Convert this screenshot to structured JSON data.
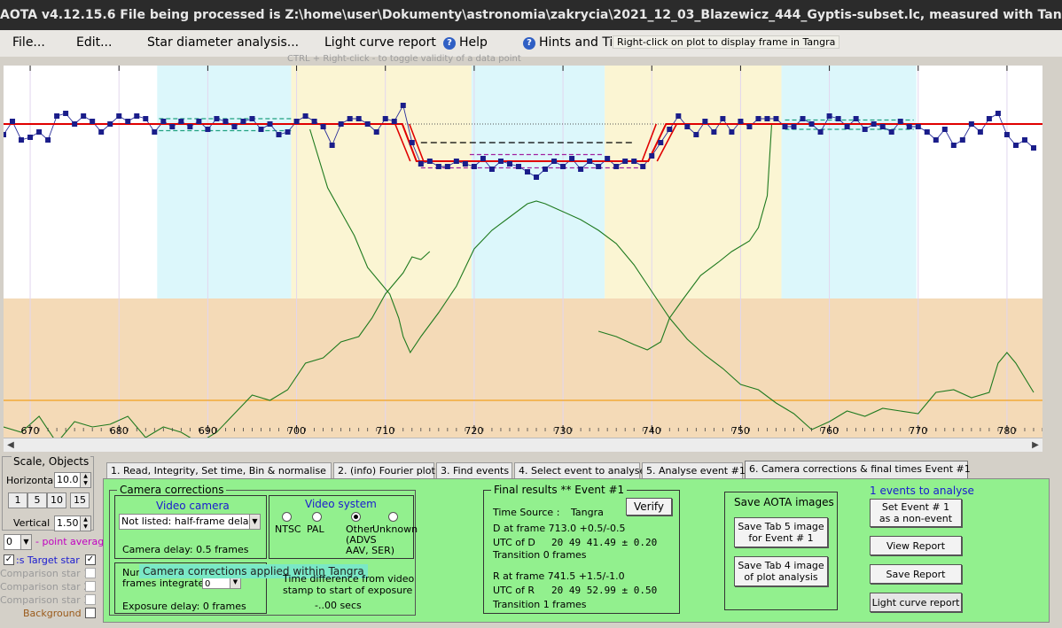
{
  "window": {
    "title": "AOTA v4.12.15.6    File being processed is Z:\\home\\user\\Dokumenty\\astronomia\\zakrycia\\2021_12_03_Blazewicz_444_Gyptis-subset.lc, measured with Tangra"
  },
  "menu": {
    "file": "File...",
    "edit": "Edit...",
    "star_diameter": "Star diameter analysis...",
    "light_curve": "Light curve report",
    "help": "Help",
    "hints": "Hints and Tips"
  },
  "tooltip": "Right-click on plot to display frame in Tangra",
  "hint_line": "CTRL + Right-click   -   to toggle validity of a data point",
  "chart_data": {
    "type": "line",
    "title": "",
    "xlabel": "",
    "ylabel": "",
    "xlim": [
      667,
      784
    ],
    "x_ticks": [
      "670",
      "680",
      "690",
      "700",
      "710",
      "720",
      "730",
      "740",
      "750",
      "760",
      "770",
      "780"
    ],
    "x_tick_values": [
      670,
      680,
      690,
      700,
      710,
      720,
      730,
      740,
      750,
      760,
      770,
      780
    ],
    "shaded_regions": [
      {
        "from": 684.3,
        "to": 699.4,
        "color": "#dcf7fb"
      },
      {
        "from": 699.4,
        "to": 719.7,
        "color": "#fbf5d3"
      },
      {
        "from": 719.7,
        "to": 734.7,
        "color": "#dcf7fb"
      },
      {
        "from": 734.7,
        "to": 754.6,
        "color": "#fbf5d3"
      },
      {
        "from": 754.6,
        "to": 769.8,
        "color": "#dcf7fb"
      }
    ],
    "lower_band_color": "#f4dab7",
    "series_points_color": "#1a1d8a",
    "model_color": "#e00000",
    "secondary_color": "#1f7a1f",
    "baseline_color": "#f0a020",
    "light_curve": [
      [
        667,
        0.74
      ],
      [
        668,
        0.79
      ],
      [
        669,
        0.72
      ],
      [
        670,
        0.73
      ],
      [
        671,
        0.75
      ],
      [
        672,
        0.72
      ],
      [
        673,
        0.81
      ],
      [
        674,
        0.82
      ],
      [
        675,
        0.78
      ],
      [
        676,
        0.81
      ],
      [
        677,
        0.79
      ],
      [
        678,
        0.75
      ],
      [
        679,
        0.78
      ],
      [
        680,
        0.81
      ],
      [
        681,
        0.79
      ],
      [
        682,
        0.81
      ],
      [
        683,
        0.8
      ],
      [
        684,
        0.75
      ],
      [
        685,
        0.79
      ],
      [
        686,
        0.77
      ],
      [
        687,
        0.79
      ],
      [
        688,
        0.77
      ],
      [
        689,
        0.79
      ],
      [
        690,
        0.76
      ],
      [
        691,
        0.8
      ],
      [
        692,
        0.79
      ],
      [
        693,
        0.77
      ],
      [
        694,
        0.79
      ],
      [
        695,
        0.8
      ],
      [
        696,
        0.76
      ],
      [
        697,
        0.78
      ],
      [
        698,
        0.74
      ],
      [
        699,
        0.75
      ],
      [
        700,
        0.79
      ],
      [
        701,
        0.81
      ],
      [
        702,
        0.79
      ],
      [
        703,
        0.77
      ],
      [
        704,
        0.7
      ],
      [
        705,
        0.78
      ],
      [
        706,
        0.8
      ],
      [
        707,
        0.8
      ],
      [
        708,
        0.78
      ],
      [
        709,
        0.75
      ],
      [
        710,
        0.8
      ],
      [
        711,
        0.79
      ],
      [
        712,
        0.85
      ],
      [
        713,
        0.71
      ],
      [
        714,
        0.63
      ],
      [
        715,
        0.64
      ],
      [
        716,
        0.62
      ],
      [
        717,
        0.62
      ],
      [
        718,
        0.64
      ],
      [
        719,
        0.63
      ],
      [
        720,
        0.62
      ],
      [
        721,
        0.65
      ],
      [
        722,
        0.61
      ],
      [
        723,
        0.64
      ],
      [
        724,
        0.63
      ],
      [
        725,
        0.62
      ],
      [
        726,
        0.6
      ],
      [
        727,
        0.58
      ],
      [
        728,
        0.61
      ],
      [
        729,
        0.64
      ],
      [
        730,
        0.62
      ],
      [
        731,
        0.65
      ],
      [
        732,
        0.61
      ],
      [
        733,
        0.64
      ],
      [
        734,
        0.62
      ],
      [
        735,
        0.65
      ],
      [
        736,
        0.62
      ],
      [
        737,
        0.64
      ],
      [
        738,
        0.64
      ],
      [
        739,
        0.62
      ],
      [
        740,
        0.66
      ],
      [
        741,
        0.71
      ],
      [
        742,
        0.76
      ],
      [
        743,
        0.81
      ],
      [
        744,
        0.77
      ],
      [
        745,
        0.74
      ],
      [
        746,
        0.79
      ],
      [
        747,
        0.75
      ],
      [
        748,
        0.8
      ],
      [
        749,
        0.75
      ],
      [
        750,
        0.79
      ],
      [
        751,
        0.77
      ],
      [
        752,
        0.8
      ],
      [
        753,
        0.8
      ],
      [
        754,
        0.8
      ],
      [
        755,
        0.77
      ],
      [
        756,
        0.77
      ],
      [
        757,
        0.8
      ],
      [
        758,
        0.78
      ],
      [
        759,
        0.75
      ],
      [
        760,
        0.81
      ],
      [
        761,
        0.8
      ],
      [
        762,
        0.77
      ],
      [
        763,
        0.8
      ],
      [
        764,
        0.76
      ],
      [
        765,
        0.78
      ],
      [
        766,
        0.77
      ],
      [
        767,
        0.75
      ],
      [
        768,
        0.79
      ],
      [
        769,
        0.77
      ],
      [
        770,
        0.77
      ],
      [
        771,
        0.75
      ],
      [
        772,
        0.72
      ],
      [
        773,
        0.76
      ],
      [
        774,
        0.7
      ],
      [
        775,
        0.72
      ],
      [
        776,
        0.78
      ],
      [
        777,
        0.75
      ],
      [
        778,
        0.8
      ],
      [
        779,
        0.82
      ],
      [
        780,
        0.74
      ],
      [
        781,
        0.7
      ],
      [
        782,
        0.72
      ],
      [
        783,
        0.69
      ]
    ],
    "model_line": [
      [
        667,
        0.78
      ],
      [
        711.9,
        0.78
      ],
      [
        713.5,
        0.64
      ],
      [
        739.6,
        0.64
      ],
      [
        741.6,
        0.78
      ],
      [
        784,
        0.78
      ]
    ],
    "secondary_curve_a": [
      [
        701.5,
        0.76
      ],
      [
        703.5,
        0.54
      ],
      [
        705,
        0.45
      ],
      [
        706.5,
        0.36
      ],
      [
        708,
        0.24
      ],
      [
        709.5,
        0.18
      ],
      [
        710.5,
        0.14
      ],
      [
        711.5,
        0.05
      ],
      [
        712,
        -0.02
      ],
      [
        712.8,
        -0.08
      ],
      [
        714,
        -0.02
      ],
      [
        716,
        0.07
      ],
      [
        718,
        0.17
      ],
      [
        720,
        0.31
      ],
      [
        722,
        0.38
      ],
      [
        724,
        0.43
      ],
      [
        726,
        0.48
      ],
      [
        727,
        0.49
      ],
      [
        728,
        0.48
      ],
      [
        730,
        0.45
      ],
      [
        732,
        0.42
      ],
      [
        734,
        0.38
      ],
      [
        736,
        0.33
      ],
      [
        738,
        0.25
      ],
      [
        740,
        0.15
      ],
      [
        742,
        0.05
      ],
      [
        744,
        -0.03
      ],
      [
        746,
        -0.09
      ],
      [
        748,
        -0.14
      ],
      [
        750,
        -0.2
      ],
      [
        752,
        -0.22
      ],
      [
        754,
        -0.27
      ],
      [
        756,
        -0.31
      ],
      [
        758,
        -0.37
      ],
      [
        760,
        -0.34
      ],
      [
        762,
        -0.3
      ],
      [
        764,
        -0.32
      ],
      [
        766,
        -0.29
      ],
      [
        768,
        -0.3
      ],
      [
        770,
        -0.31
      ],
      [
        772,
        -0.23
      ],
      [
        774,
        -0.22
      ],
      [
        776,
        -0.25
      ],
      [
        778,
        -0.23
      ],
      [
        779,
        -0.12
      ],
      [
        780,
        -0.08
      ],
      [
        781,
        -0.12
      ],
      [
        783,
        -0.23
      ]
    ],
    "secondary_curve_b": [
      [
        667,
        -0.36
      ],
      [
        669,
        -0.38
      ],
      [
        671,
        -0.32
      ],
      [
        673,
        -0.42
      ],
      [
        675,
        -0.34
      ],
      [
        677,
        -0.36
      ],
      [
        679,
        -0.35
      ],
      [
        681,
        -0.32
      ],
      [
        683,
        -0.4
      ],
      [
        685,
        -0.36
      ],
      [
        687,
        -0.38
      ],
      [
        689,
        -0.42
      ],
      [
        691,
        -0.38
      ],
      [
        693,
        -0.31
      ],
      [
        695,
        -0.24
      ],
      [
        697,
        -0.26
      ],
      [
        699,
        -0.22
      ],
      [
        701,
        -0.12
      ],
      [
        703,
        -0.1
      ],
      [
        705,
        -0.04
      ],
      [
        707,
        -0.02
      ],
      [
        708.5,
        0.05
      ],
      [
        710,
        0.14
      ],
      [
        712,
        0.22
      ],
      [
        713,
        0.28
      ],
      [
        714,
        0.27
      ],
      [
        715,
        0.3
      ]
    ],
    "secondary_curve_c": [
      [
        734,
        0.0
      ],
      [
        736,
        -0.02
      ],
      [
        738,
        -0.05
      ],
      [
        739.5,
        -0.07
      ],
      [
        741,
        -0.04
      ],
      [
        742,
        0.05
      ],
      [
        743.5,
        0.12
      ],
      [
        745.5,
        0.21
      ],
      [
        747.5,
        0.26
      ],
      [
        749,
        0.3
      ],
      [
        751,
        0.34
      ],
      [
        752,
        0.39
      ],
      [
        753,
        0.51
      ],
      [
        753.5,
        0.78
      ]
    ]
  },
  "scale_panel": {
    "caption": "Scale, Objects",
    "horizontal_label": "Horizontal",
    "horizontal_value": "10.0",
    "buttons": [
      "1",
      "5",
      "10",
      "15"
    ],
    "vertical_label": "Vertical",
    "vertical_value": "1.50",
    "point_average_value": "0",
    "point_average_label": "- point average",
    "target_star": ":s  Target star",
    "comparison_1": "Comparison star 1",
    "comparison_2": "Comparison star 2",
    "comparison_3": "Comparison star 3",
    "background": "Background"
  },
  "tabs": [
    "1.  Read, Integrity, Set time, Bin & normalise",
    "2. (info)  Fourier plot",
    "3. Find events",
    "4. Select event to analyse",
    "5. Analyse event #1",
    "6. Camera corrections & final times Event #1"
  ],
  "camera": {
    "caption": "Camera corrections",
    "video_camera_label": "Video camera",
    "camera_select": "Not listed: half-frame delay",
    "camera_delay": "Camera delay: 0.5 frames",
    "num_label_1": "Num",
    "frames_integrated": "frames integrated",
    "frames_value": "0",
    "exposure_delay": "Exposure delay:  0 frames",
    "applied_banner": "Camera corrections applied within Tangra"
  },
  "video_system": {
    "caption": "Video system",
    "ntsc": "NTSC",
    "pal": "PAL",
    "other": "Other",
    "other_detail_1": "(ADVS",
    "other_detail_2": "AAV, SER)",
    "unknown": "Unknown"
  },
  "time_diff": {
    "line_1": "Time difference from video",
    "line_2": "stamp to start of exposure",
    "value": "-..00 secs"
  },
  "final_results": {
    "caption": "Final results  **  Event #1",
    "time_source_label": "Time Source :",
    "time_source_value": "Tangra",
    "verify": "Verify",
    "d_frame": "D    at frame 713.0  +0.5/-0.5",
    "utc_d_label": "UTC of D",
    "utc_d_value": "20 49 41.49 ± 0.20",
    "transition_d": "Transition  0 frames",
    "r_frame": "R    at frame 741.5  +1.5/-1.0",
    "utc_r_label": "UTC of R",
    "utc_r_value": "20 49 52.99 ± 0.50",
    "transition_r": "Transition  1 frames"
  },
  "save_images": {
    "caption": "Save AOTA images",
    "tab5_1": "Save Tab 5 image",
    "tab5_2": "for Event # 1",
    "tab4_1": "Save Tab 4 image",
    "tab4_2": "of plot analysis"
  },
  "events": {
    "header": "1  events to analyse",
    "non_event_1": "Set Event # 1",
    "non_event_2": "as a non-event",
    "view_report": "View Report",
    "save_report": "Save Report",
    "light_curve_report": "Light curve report"
  }
}
